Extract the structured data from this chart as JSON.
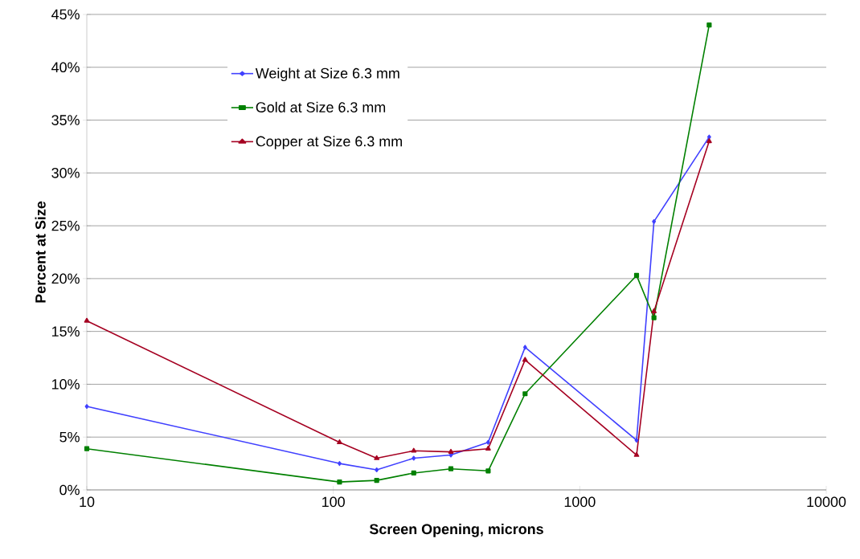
{
  "chart_data": {
    "type": "line",
    "xlabel": "Screen Opening, microns",
    "ylabel": "Percent at Size",
    "log": "x",
    "grid": "y",
    "legend": "top left",
    "line_style": "solid",
    "xlim": [
      10,
      10000
    ],
    "xticks": [
      10,
      100,
      1000,
      10000
    ],
    "ylim": [
      0,
      45
    ],
    "yticks": [
      {
        "value": 0,
        "label": "0%"
      },
      {
        "value": 5,
        "label": "5%"
      },
      {
        "value": 10,
        "label": "10%"
      },
      {
        "value": 15,
        "label": "15%"
      },
      {
        "value": 20,
        "label": "20%"
      },
      {
        "value": 25,
        "label": "25%"
      },
      {
        "value": 30,
        "label": "30%"
      },
      {
        "value": 35,
        "label": "35%"
      },
      {
        "value": 40,
        "label": "40%"
      },
      {
        "value": 45,
        "label": "45%"
      }
    ],
    "x": [
      10,
      106,
      150,
      212,
      300,
      425,
      600,
      1700,
      2000,
      3350
    ],
    "series": [
      {
        "name": "Weight at Size 6.3 mm",
        "color": "#4040ff",
        "marker": "diamond",
        "values": [
          7.9,
          2.5,
          1.9,
          3.0,
          3.3,
          4.5,
          13.5,
          4.7,
          25.4,
          33.4
        ]
      },
      {
        "name": "Gold at Size 6.3 mm",
        "color": "#008000",
        "marker": "square",
        "values": [
          3.9,
          0.75,
          0.9,
          1.6,
          2.0,
          1.8,
          9.1,
          20.3,
          16.3,
          44.0
        ]
      },
      {
        "name": "Copper at Size 6.3 mm",
        "color": "#a50021",
        "marker": "triangle",
        "values": [
          16.0,
          4.5,
          3.0,
          3.7,
          3.6,
          3.9,
          12.3,
          3.3,
          16.9,
          33.0
        ]
      }
    ]
  }
}
